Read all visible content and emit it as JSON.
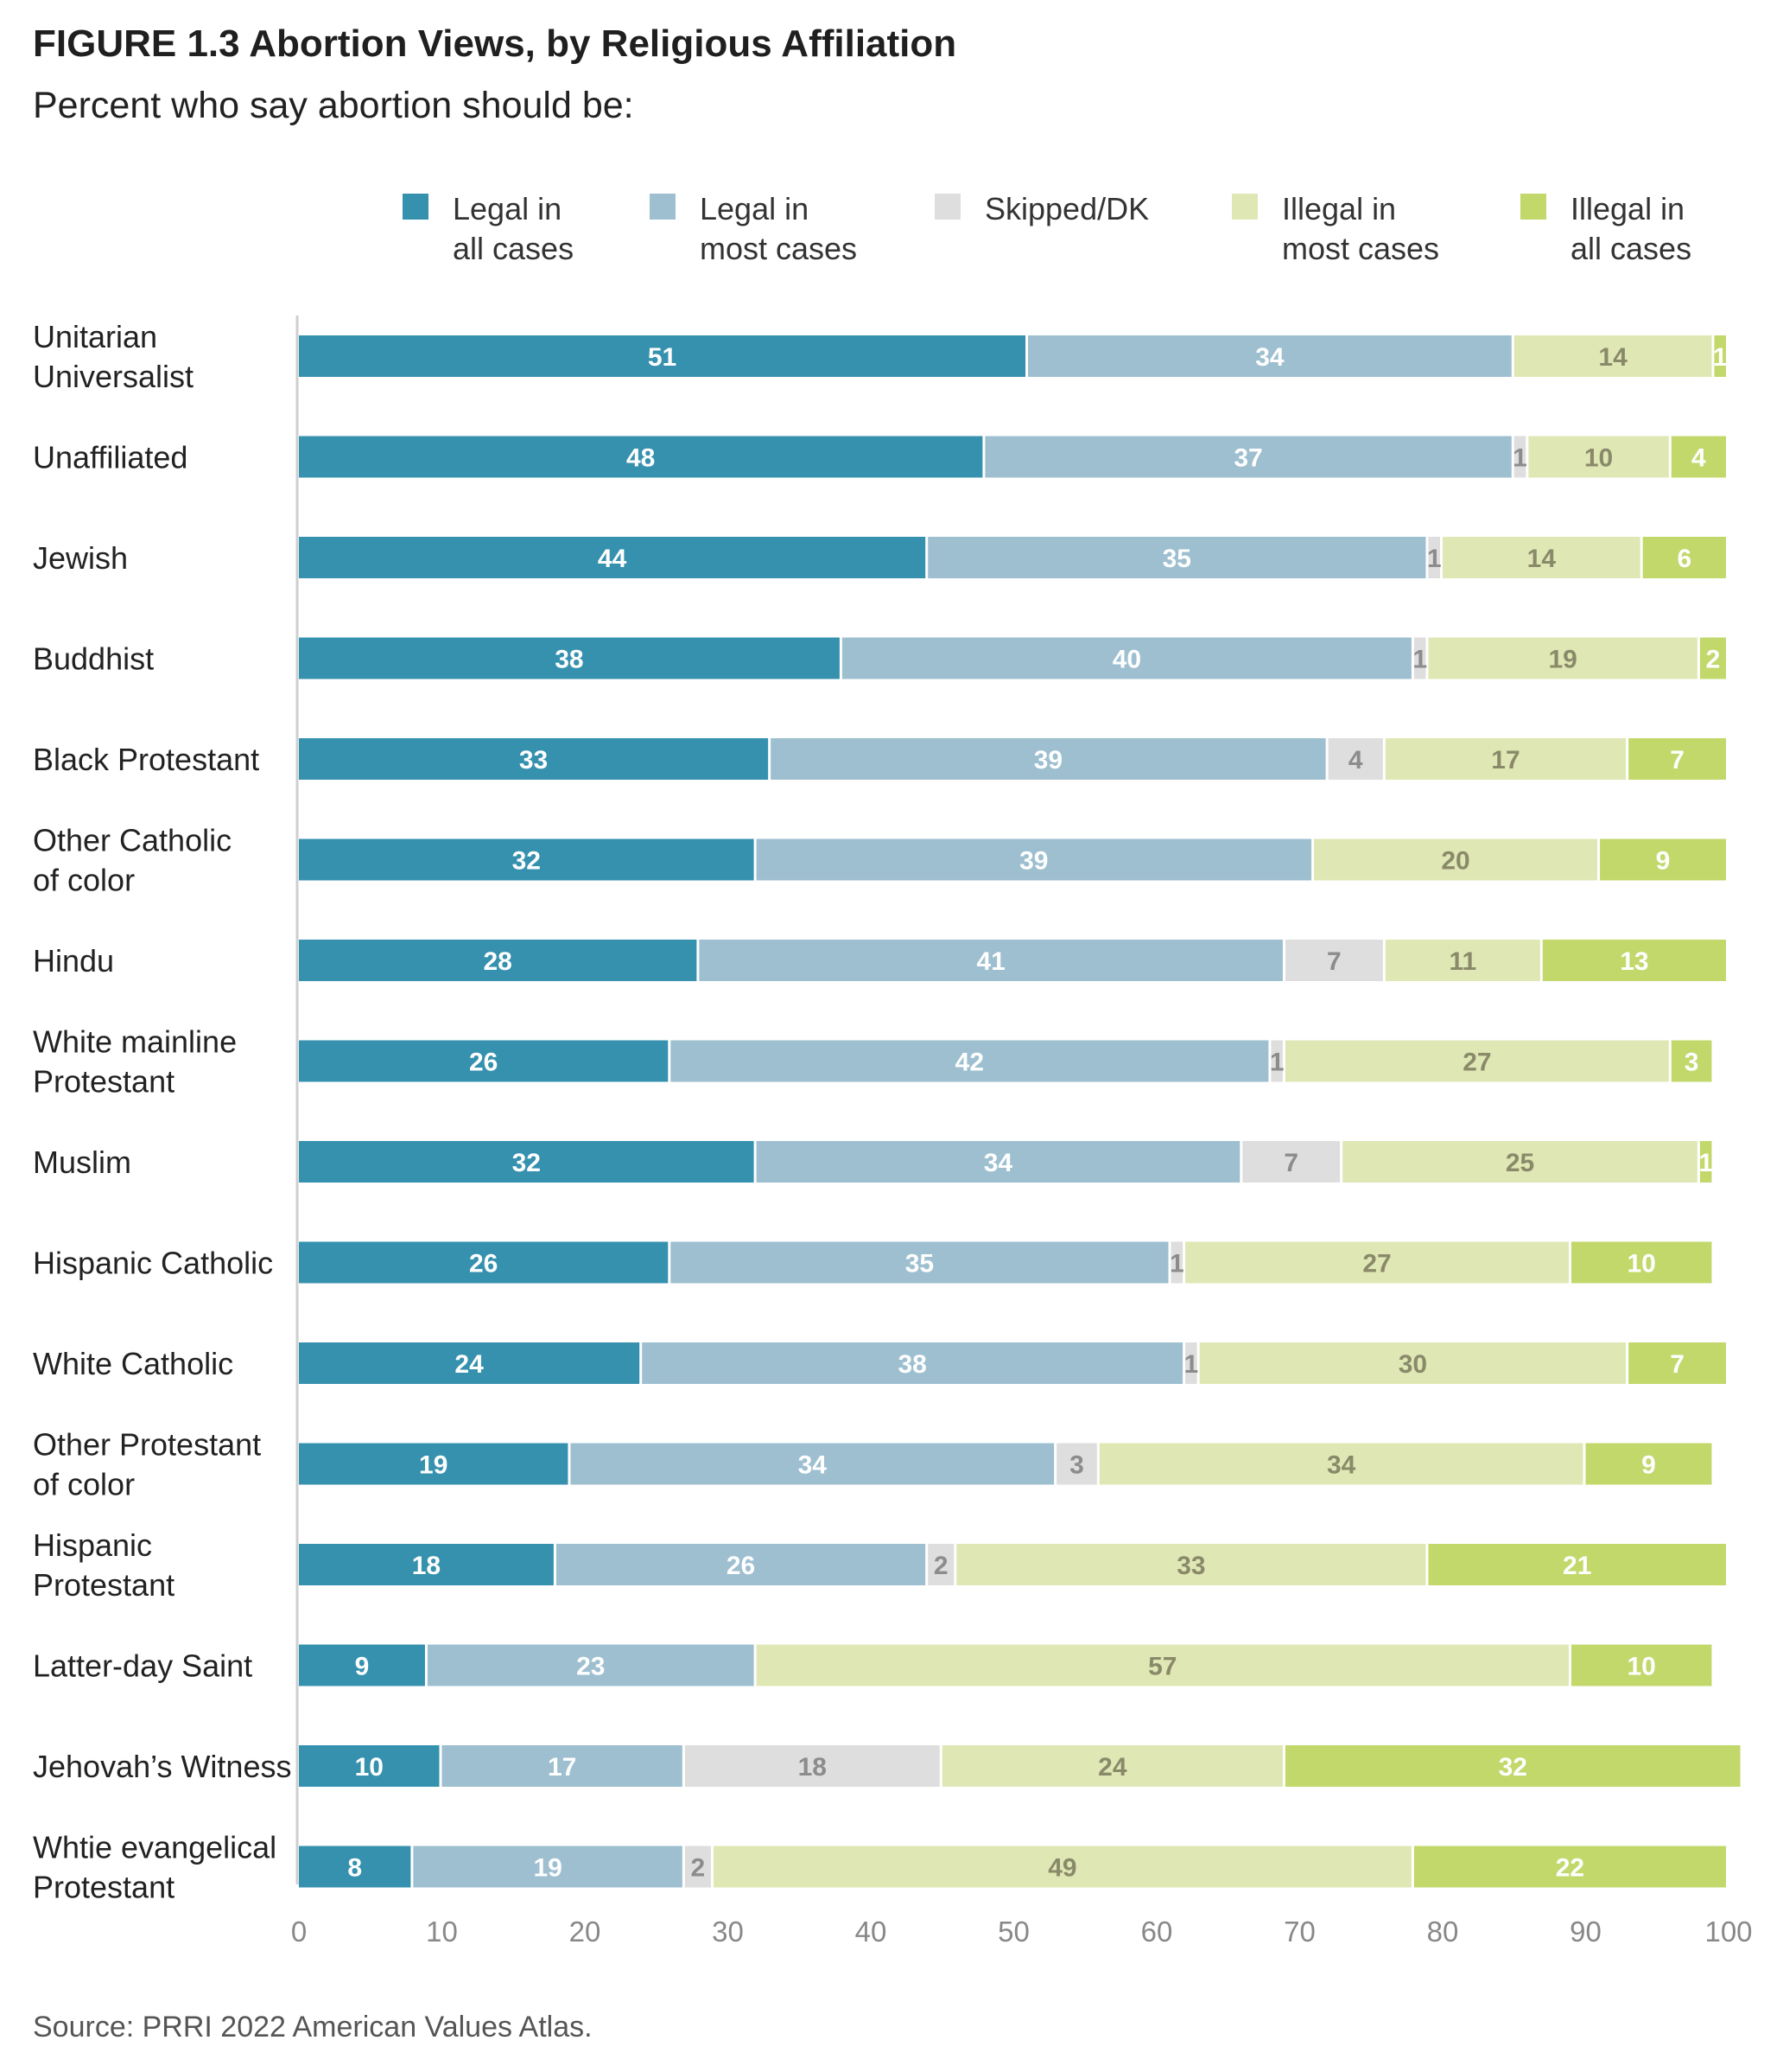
{
  "title": "FIGURE 1.3  Abortion Views, by Religious Affiliation",
  "subtitle": "Percent who say abortion should be:",
  "source": "Source: PRRI 2022 American Values Atlas.",
  "chart_data": {
    "type": "bar",
    "orientation": "horizontal",
    "stacked": true,
    "legend_position": "top",
    "grid": false,
    "xlim": [
      0,
      100
    ],
    "x_ticks": [
      0,
      10,
      20,
      30,
      40,
      50,
      60,
      70,
      80,
      90,
      100
    ],
    "categories": [
      [
        "Unitarian",
        "Universalist"
      ],
      [
        "Unaffiliated"
      ],
      [
        "Jewish"
      ],
      [
        "Buddhist"
      ],
      [
        "Black Protestant"
      ],
      [
        "Other Catholic",
        "of color"
      ],
      [
        "Hindu"
      ],
      [
        "White mainline",
        "Protestant"
      ],
      [
        "Muslim"
      ],
      [
        "Hispanic Catholic"
      ],
      [
        "White Catholic"
      ],
      [
        "Other Protestant",
        "of color"
      ],
      [
        "Hispanic",
        "Protestant"
      ],
      [
        "Latter-day Saint"
      ],
      [
        "Jehovah’s Witness"
      ],
      [
        "Whtie evangelical",
        "Protestant"
      ]
    ],
    "series": [
      {
        "name": [
          "Legal in",
          "all cases"
        ],
        "color": "#3591ae",
        "label_color": "#ffffff",
        "values": [
          51,
          48,
          44,
          38,
          33,
          32,
          28,
          26,
          32,
          26,
          24,
          19,
          18,
          9,
          10,
          8
        ]
      },
      {
        "name": [
          "Legal in",
          "most cases"
        ],
        "color": "#9dbfd0",
        "label_color": "#ffffff",
        "values": [
          34,
          37,
          35,
          40,
          39,
          39,
          41,
          42,
          34,
          35,
          38,
          34,
          26,
          23,
          17,
          19
        ]
      },
      {
        "name": [
          "Skipped/DK"
        ],
        "color": "#dedede",
        "label_color": "#8c8c8c",
        "values": [
          0,
          1,
          1,
          1,
          4,
          0,
          7,
          1,
          7,
          1,
          1,
          3,
          2,
          0,
          18,
          2
        ]
      },
      {
        "name": [
          "Illegal in",
          "most cases"
        ],
        "color": "#dfe8b4",
        "label_color": "#8a8a6a",
        "values": [
          14,
          10,
          14,
          19,
          17,
          20,
          11,
          27,
          25,
          27,
          30,
          34,
          33,
          57,
          24,
          49
        ]
      },
      {
        "name": [
          "Illegal in",
          "all cases"
        ],
        "color": "#c2d86b",
        "label_color": "#ffffff",
        "values": [
          1,
          4,
          6,
          2,
          7,
          9,
          13,
          3,
          1,
          10,
          7,
          9,
          21,
          10,
          32,
          22
        ]
      }
    ]
  }
}
